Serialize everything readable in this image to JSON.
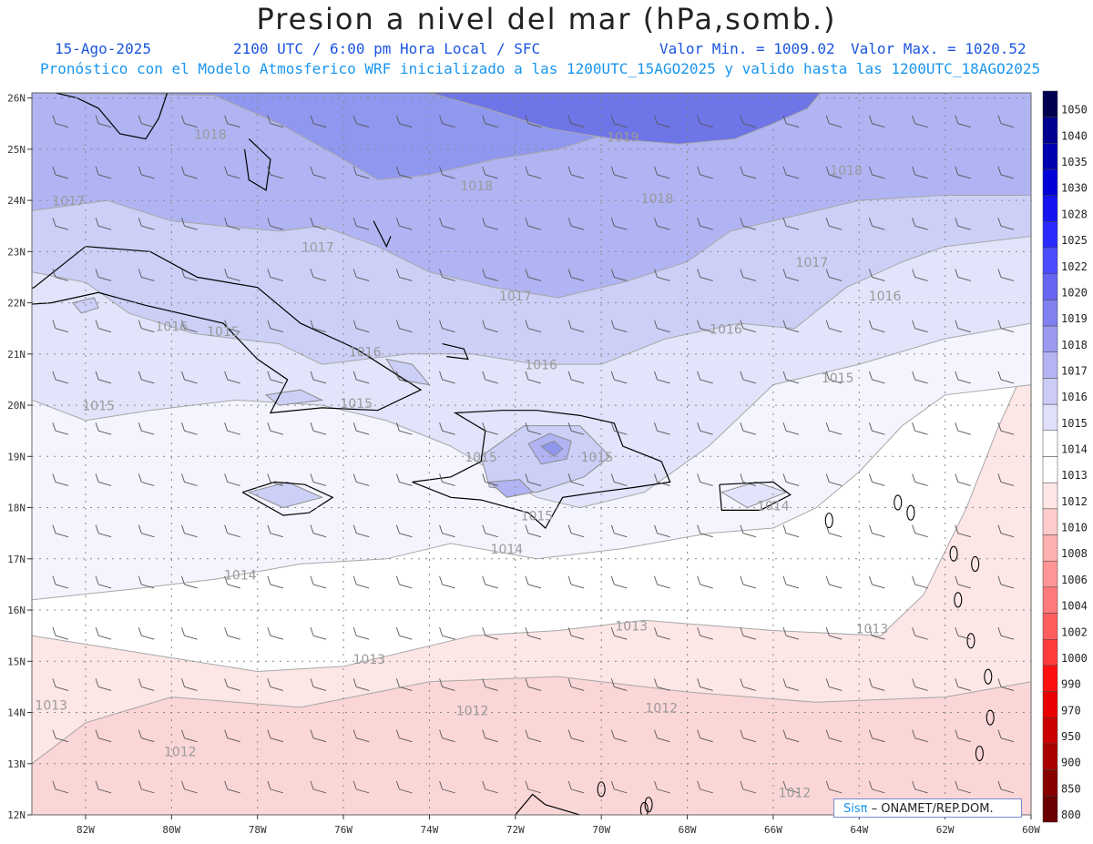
{
  "header": {
    "title": "Presion a nivel del mar (hPa,somb.)",
    "date": "15-Ago-2025",
    "time": "2100 UTC / 6:00 pm Hora Local / SFC",
    "vmin": "Valor Min. = 1009.02",
    "vmax": "Valor Max. = 1020.52",
    "model_line": "Pronóstico con el Modelo Atmosferico WRF inicializado a las 1200UTC_15AGO2025 y valido hasta las  1200UTC_18AGO2025"
  },
  "badge": {
    "brand": "Sisπ",
    "text": "– ONAMET/REP.DOM."
  },
  "map": {
    "lat_labels": [
      "26N",
      "25N",
      "24N",
      "23N",
      "22N",
      "21N",
      "20N",
      "19N",
      "18N",
      "17N",
      "16N",
      "15N",
      "14N",
      "13N",
      "12N"
    ],
    "lon_labels": [
      "82W",
      "80W",
      "78W",
      "76W",
      "74W",
      "72W",
      "70W",
      "68W",
      "66W",
      "64W",
      "62W",
      "60W"
    ],
    "isobar_labels": [
      {
        "text": "1018",
        "lon": -79.1,
        "lat": 25.2
      },
      {
        "text": "1019",
        "lon": -69.5,
        "lat": 25.15
      },
      {
        "text": "1018",
        "lon": -64.3,
        "lat": 24.5
      },
      {
        "text": "1018",
        "lon": -72.9,
        "lat": 24.2
      },
      {
        "text": "1018",
        "lon": -68.7,
        "lat": 23.95
      },
      {
        "text": "1017",
        "lon": -82.4,
        "lat": 23.9
      },
      {
        "text": "1017",
        "lon": -76.6,
        "lat": 23.0
      },
      {
        "text": "1017",
        "lon": -72.0,
        "lat": 22.05
      },
      {
        "text": "1017",
        "lon": -65.1,
        "lat": 22.7
      },
      {
        "text": "1016",
        "lon": -63.4,
        "lat": 22.05
      },
      {
        "text": "1016",
        "lon": -80.0,
        "lat": 21.45
      },
      {
        "text": "1015",
        "lon": -78.8,
        "lat": 21.35
      },
      {
        "text": "1016",
        "lon": -75.5,
        "lat": 20.95
      },
      {
        "text": "1016",
        "lon": -71.4,
        "lat": 20.7
      },
      {
        "text": "1016",
        "lon": -67.1,
        "lat": 21.4
      },
      {
        "text": "1015",
        "lon": -64.5,
        "lat": 20.45
      },
      {
        "text": "1015",
        "lon": -81.7,
        "lat": 19.9
      },
      {
        "text": "1015",
        "lon": -75.7,
        "lat": 19.95
      },
      {
        "text": "1015",
        "lon": -72.8,
        "lat": 18.9
      },
      {
        "text": "1015",
        "lon": -70.1,
        "lat": 18.9
      },
      {
        "text": "1015",
        "lon": -71.5,
        "lat": 17.75
      },
      {
        "text": "1014",
        "lon": -66.0,
        "lat": 17.95
      },
      {
        "text": "1014",
        "lon": -72.2,
        "lat": 17.1
      },
      {
        "text": "1014",
        "lon": -78.4,
        "lat": 16.6
      },
      {
        "text": "1013",
        "lon": -69.3,
        "lat": 15.6
      },
      {
        "text": "1013",
        "lon": -63.7,
        "lat": 15.55
      },
      {
        "text": "1013",
        "lon": -75.4,
        "lat": 14.95
      },
      {
        "text": "1013",
        "lon": -82.8,
        "lat": 14.05
      },
      {
        "text": "1012",
        "lon": -73.0,
        "lat": 13.95
      },
      {
        "text": "1012",
        "lon": -68.6,
        "lat": 14.0
      },
      {
        "text": "1012",
        "lon": -79.8,
        "lat": 13.15
      },
      {
        "text": "1012",
        "lon": -65.5,
        "lat": 12.35
      }
    ],
    "fill_colors": {
      "p1019": "#6e75e6",
      "p1018": "#9097ee",
      "p1017": "#b0b4f3",
      "p1016": "#ccd0f7",
      "p1015": "#e2e4fb",
      "p1014": "#f4f4fe",
      "p1013": "#ffffff",
      "p1012": "#fde6e6",
      "p1011": "#fbd6d6"
    }
  },
  "colorbar": {
    "labels": [
      "1050",
      "1040",
      "1035",
      "1030",
      "1028",
      "1025",
      "1022",
      "1020",
      "1019",
      "1018",
      "1017",
      "1016",
      "1015",
      "1014",
      "1013",
      "1012",
      "1010",
      "1008",
      "1006",
      "1004",
      "1002",
      "1000",
      "990",
      "970",
      "950",
      "900",
      "850",
      "800"
    ],
    "colors": [
      "#000050",
      "#000090",
      "#0000b0",
      "#0000d8",
      "#1414f0",
      "#2a2aff",
      "#4b4bff",
      "#6666f2",
      "#8080f0",
      "#9a9aef",
      "#b4b4f3",
      "#ccccf7",
      "#e0e0fa",
      "#ffffff",
      "#ffffff",
      "#ffe6e6",
      "#ffcccc",
      "#ffb0b0",
      "#ff9595",
      "#ff7a7a",
      "#ff5e5e",
      "#ff3c3c",
      "#ff1010",
      "#e80000",
      "#cc0000",
      "#a80000",
      "#880000",
      "#6a0000"
    ]
  }
}
